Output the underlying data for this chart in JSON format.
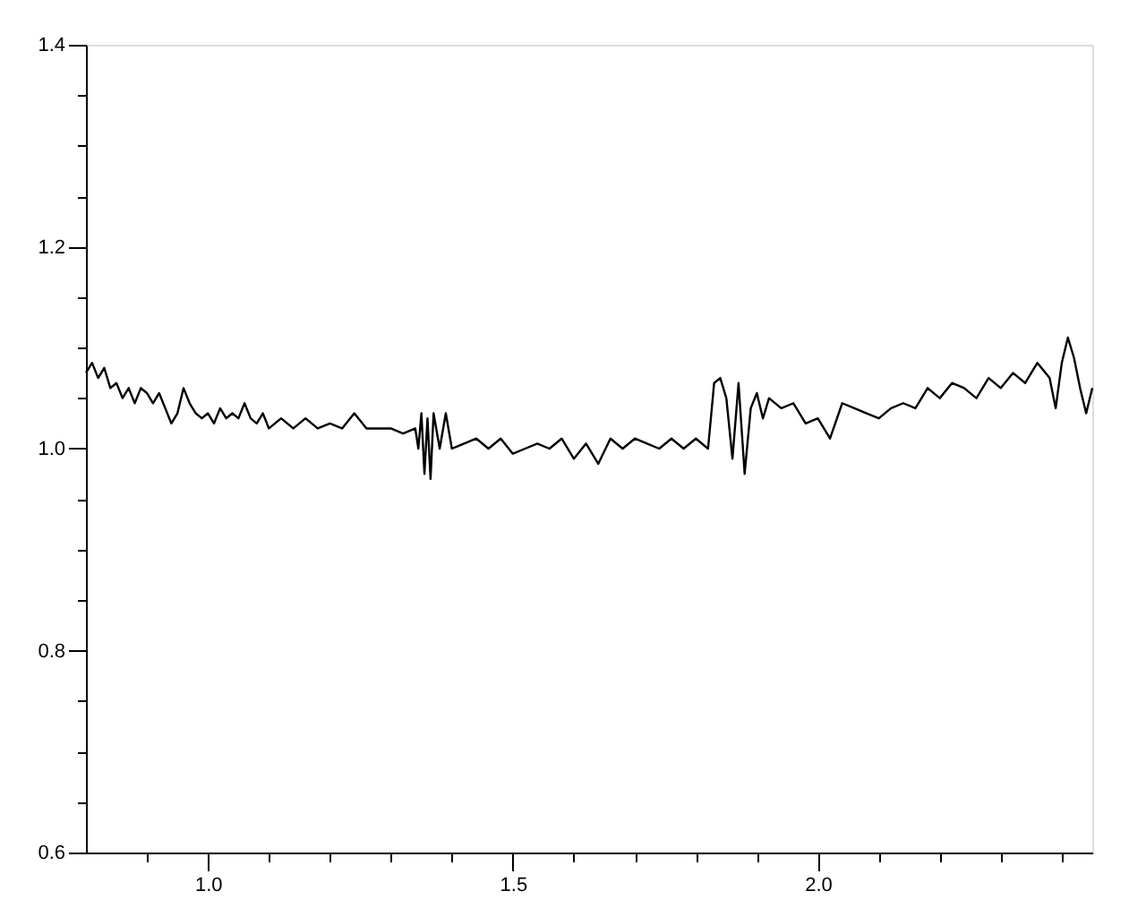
{
  "chart_data": {
    "type": "line",
    "x": [
      0.8,
      0.81,
      0.82,
      0.83,
      0.84,
      0.85,
      0.86,
      0.87,
      0.88,
      0.89,
      0.9,
      0.91,
      0.92,
      0.93,
      0.94,
      0.95,
      0.96,
      0.97,
      0.98,
      0.99,
      1.0,
      1.01,
      1.02,
      1.03,
      1.04,
      1.05,
      1.06,
      1.07,
      1.08,
      1.09,
      1.1,
      1.12,
      1.14,
      1.16,
      1.18,
      1.2,
      1.22,
      1.24,
      1.26,
      1.28,
      1.3,
      1.32,
      1.34,
      1.345,
      1.35,
      1.355,
      1.36,
      1.365,
      1.37,
      1.38,
      1.39,
      1.4,
      1.42,
      1.44,
      1.46,
      1.48,
      1.5,
      1.52,
      1.54,
      1.56,
      1.58,
      1.6,
      1.62,
      1.64,
      1.66,
      1.68,
      1.7,
      1.72,
      1.74,
      1.76,
      1.78,
      1.8,
      1.82,
      1.83,
      1.84,
      1.85,
      1.86,
      1.87,
      1.88,
      1.89,
      1.9,
      1.91,
      1.92,
      1.94,
      1.96,
      1.98,
      2.0,
      2.02,
      2.04,
      2.06,
      2.08,
      2.1,
      2.12,
      2.14,
      2.16,
      2.18,
      2.2,
      2.22,
      2.24,
      2.26,
      2.28,
      2.3,
      2.32,
      2.34,
      2.36,
      2.38,
      2.39,
      2.4,
      2.41,
      2.42,
      2.43,
      2.44,
      2.45
    ],
    "series": [
      {
        "color": "#000000",
        "values": [
          1.075,
          1.085,
          1.07,
          1.08,
          1.06,
          1.065,
          1.05,
          1.06,
          1.045,
          1.06,
          1.055,
          1.045,
          1.055,
          1.04,
          1.025,
          1.035,
          1.06,
          1.045,
          1.035,
          1.03,
          1.035,
          1.025,
          1.04,
          1.03,
          1.035,
          1.03,
          1.045,
          1.03,
          1.025,
          1.035,
          1.02,
          1.03,
          1.02,
          1.03,
          1.02,
          1.025,
          1.02,
          1.035,
          1.02,
          1.02,
          1.02,
          1.015,
          1.02,
          1.0,
          1.035,
          0.975,
          1.03,
          0.97,
          1.035,
          1.0,
          1.035,
          1.0,
          1.005,
          1.01,
          1.0,
          1.01,
          0.995,
          1.0,
          1.005,
          1.0,
          1.01,
          0.99,
          1.005,
          0.985,
          1.01,
          1.0,
          1.01,
          1.005,
          1.0,
          1.01,
          1.0,
          1.01,
          1.0,
          1.065,
          1.07,
          1.05,
          0.99,
          1.065,
          0.975,
          1.04,
          1.055,
          1.03,
          1.05,
          1.04,
          1.045,
          1.025,
          1.03,
          1.01,
          1.045,
          1.04,
          1.035,
          1.03,
          1.04,
          1.045,
          1.04,
          1.06,
          1.05,
          1.065,
          1.06,
          1.05,
          1.07,
          1.06,
          1.075,
          1.065,
          1.085,
          1.07,
          1.04,
          1.085,
          1.11,
          1.09,
          1.06,
          1.035,
          1.06
        ]
      }
    ],
    "xlim": [
      0.8,
      2.45
    ],
    "xticks": [
      {
        "value": 0.9,
        "label": null
      },
      {
        "value": 1,
        "label": "1.0"
      },
      {
        "value": 1.1,
        "label": null
      },
      {
        "value": 1.2,
        "label": null
      },
      {
        "value": 1.3,
        "label": null
      },
      {
        "value": 1.4,
        "label": null
      },
      1.5,
      {
        "value": 1.6,
        "label": null
      },
      {
        "value": 1.7,
        "label": null
      },
      {
        "value": 1.8,
        "label": null
      },
      {
        "value": 1.9,
        "label": null
      },
      {
        "value": 2,
        "label": "2.0"
      },
      {
        "value": 2.1,
        "label": null
      },
      {
        "value": 2.2,
        "label": null
      },
      {
        "value": 2.3,
        "label": null
      },
      {
        "value": 2.4,
        "label": null
      }
    ],
    "ylim": [
      0.6,
      1.4
    ],
    "yticks": [
      0.6,
      {
        "value": 0.65,
        "label": null
      },
      {
        "value": 0.7,
        "label": null
      },
      {
        "value": 0.75,
        "label": null
      },
      0.8,
      {
        "value": 0.85,
        "label": null
      },
      {
        "value": 0.9,
        "label": null
      },
      {
        "value": 0.95,
        "label": null
      },
      {
        "value": 1,
        "label": "1.0"
      },
      {
        "value": 1.05,
        "label": null
      },
      {
        "value": 1.1,
        "label": null
      },
      {
        "value": 1.15,
        "label": null
      },
      1.2,
      {
        "value": 1.25,
        "label": null
      },
      {
        "value": 1.3,
        "label": null
      },
      {
        "value": 1.35,
        "label": null
      },
      1.4
    ],
    "grid": false,
    "marker": "none",
    "line_style": "solid"
  }
}
